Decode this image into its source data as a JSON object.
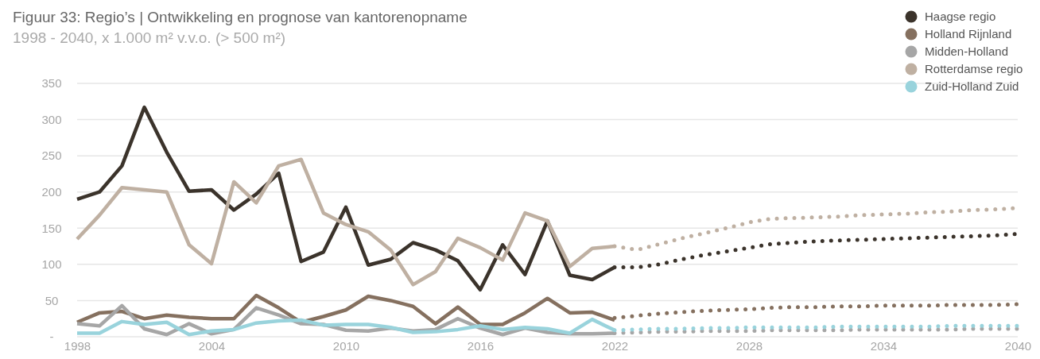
{
  "chart_data": {
    "type": "line",
    "title": "Figuur 33: Regio’s | Ontwikkeling en prognose van kantorenopname",
    "subtitle": "1998 - 2040, x 1.000 m² v.v.o. (> 500 m²)",
    "xlim": [
      1998,
      2040
    ],
    "xticks": [
      1998,
      2004,
      2010,
      2016,
      2022,
      2028,
      2034,
      2040
    ],
    "ylim": [
      0,
      350
    ],
    "yticks": [
      {
        "value": 0,
        "label": "-"
      },
      50,
      100,
      150,
      200,
      250,
      300,
      350
    ],
    "grid": "y",
    "legend": "top right",
    "line_style": "solid",
    "x": [
      1998,
      1999,
      2000,
      2001,
      2002,
      2003,
      2004,
      2005,
      2006,
      2007,
      2008,
      2009,
      2010,
      2011,
      2012,
      2013,
      2014,
      2015,
      2016,
      2017,
      2018,
      2019,
      2020,
      2021,
      2022
    ],
    "series": [
      {
        "name": "Haagse regio",
        "color": "#3b332b",
        "values": [
          190,
          200,
          236,
          317,
          255,
          201,
          203,
          175,
          197,
          226,
          104,
          117,
          179,
          99,
          107,
          130,
          120,
          105,
          65,
          127,
          86,
          160,
          85,
          79,
          96
        ]
      },
      {
        "name": "Holland Rijnland",
        "color": "#85705f",
        "values": [
          20,
          33,
          35,
          25,
          30,
          27,
          25,
          25,
          57,
          40,
          20,
          28,
          37,
          56,
          50,
          42,
          18,
          41,
          17,
          17,
          33,
          53,
          33,
          34,
          23
        ]
      },
      {
        "name": "Midden-Holland",
        "color": "#a6a6a6",
        "values": [
          18,
          15,
          43,
          11,
          3,
          18,
          4,
          10,
          40,
          30,
          18,
          17,
          9,
          8,
          12,
          8,
          10,
          25,
          12,
          3,
          12,
          6,
          4,
          4,
          5
        ]
      },
      {
        "name": "Rotterdamse regio",
        "color": "#bfb0a2",
        "values": [
          135,
          168,
          206,
          203,
          200,
          127,
          101,
          214,
          185,
          236,
          245,
          171,
          155,
          145,
          120,
          72,
          90,
          136,
          123,
          106,
          171,
          160,
          97,
          122,
          125
        ]
      },
      {
        "name": "Zuid-Holland Zuid",
        "color": "#99d3dc",
        "values": [
          5,
          5,
          21,
          17,
          20,
          3,
          8,
          10,
          19,
          22,
          23,
          16,
          17,
          17,
          13,
          6,
          7,
          10,
          15,
          10,
          13,
          11,
          5,
          24,
          9
        ]
      },
      {
        "color": "#bfb0a2",
        "line_style": "dotted",
        "x": [
          2022,
          2023,
          2024,
          2025,
          2026,
          2027,
          2028,
          2029,
          2030,
          2031,
          2032,
          2033,
          2034,
          2035,
          2036,
          2037,
          2038,
          2039,
          2040
        ],
        "values": [
          125,
          120,
          128,
          136,
          143,
          150,
          158,
          163,
          164,
          165,
          166,
          168,
          169,
          170,
          172,
          173,
          175,
          176,
          178
        ]
      },
      {
        "color": "#3b332b",
        "line_style": "dotted",
        "x": [
          2022,
          2023,
          2024,
          2025,
          2026,
          2027,
          2028,
          2029,
          2030,
          2031,
          2032,
          2033,
          2034,
          2035,
          2036,
          2037,
          2038,
          2039,
          2040
        ],
        "values": [
          96,
          96,
          100,
          107,
          113,
          118,
          123,
          128,
          130,
          132,
          133,
          134,
          135,
          136,
          137,
          138,
          139,
          140,
          142
        ]
      },
      {
        "color": "#85705f",
        "line_style": "dotted",
        "x": [
          2022,
          2023,
          2024,
          2025,
          2026,
          2027,
          2028,
          2029,
          2030,
          2031,
          2032,
          2033,
          2034,
          2035,
          2036,
          2037,
          2038,
          2039,
          2040
        ],
        "values": [
          26,
          29,
          32,
          34,
          36,
          37,
          38,
          40,
          41,
          41,
          42,
          42,
          43,
          43,
          43,
          44,
          44,
          44,
          45
        ]
      },
      {
        "color": "#a6a6a6",
        "line_style": "dotted",
        "x": [
          2022,
          2023,
          2024,
          2025,
          2026,
          2027,
          2028,
          2029,
          2030,
          2031,
          2032,
          2033,
          2034,
          2035,
          2036,
          2037,
          2038,
          2039,
          2040
        ],
        "values": [
          5,
          6,
          7,
          7,
          8,
          8,
          8,
          9,
          9,
          9,
          9,
          10,
          10,
          10,
          10,
          10,
          11,
          11,
          11
        ]
      },
      {
        "color": "#99d3dc",
        "line_style": "dotted",
        "x": [
          2022,
          2023,
          2024,
          2025,
          2026,
          2027,
          2028,
          2029,
          2030,
          2031,
          2032,
          2033,
          2034,
          2035,
          2036,
          2037,
          2038,
          2039,
          2040
        ],
        "values": [
          9,
          10,
          11,
          11,
          12,
          12,
          13,
          13,
          13,
          13,
          14,
          14,
          14,
          14,
          14,
          15,
          15,
          15,
          15
        ]
      }
    ]
  }
}
